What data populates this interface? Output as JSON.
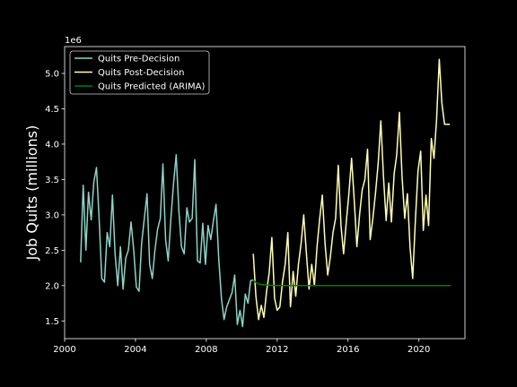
{
  "chart_data": {
    "type": "line",
    "title": "",
    "xlabel": "",
    "ylabel": "Job Quits (millions)",
    "y_offset_text": "1e6",
    "xlim": [
      2000,
      2022.6
    ],
    "ylim": [
      1.25,
      5.38
    ],
    "x_ticks": [
      2000,
      2004,
      2008,
      2012,
      2016,
      2020
    ],
    "y_ticks": [
      1.5,
      2.0,
      2.5,
      3.0,
      3.5,
      4.0,
      4.5,
      5.0
    ],
    "x_tick_labels": [
      "2000",
      "2004",
      "2008",
      "2012",
      "2016",
      "2020"
    ],
    "y_tick_labels": [
      "1.5",
      "2.0",
      "2.5",
      "3.0",
      "3.5",
      "4.0",
      "4.5",
      "5.0"
    ],
    "grid": false,
    "legend_position": "upper-left",
    "series": [
      {
        "name": "Quits Pre-Decision",
        "color": "#8dd3c7",
        "x": [
          2000.9,
          2001.05,
          2001.2,
          2001.35,
          2001.5,
          2001.65,
          2001.8,
          2001.95,
          2002.1,
          2002.25,
          2002.4,
          2002.55,
          2002.7,
          2002.85,
          2003.0,
          2003.15,
          2003.3,
          2003.45,
          2003.6,
          2003.75,
          2003.9,
          2004.05,
          2004.2,
          2004.35,
          2004.5,
          2004.65,
          2004.8,
          2004.95,
          2005.1,
          2005.25,
          2005.4,
          2005.55,
          2005.7,
          2005.85,
          2006.0,
          2006.15,
          2006.3,
          2006.45,
          2006.6,
          2006.75,
          2006.9,
          2007.05,
          2007.2,
          2007.35,
          2007.5,
          2007.65,
          2007.8,
          2007.95,
          2008.1,
          2008.25,
          2008.4,
          2008.55,
          2008.7,
          2008.85,
          2009.0,
          2009.15,
          2009.3,
          2009.45,
          2009.6,
          2009.75,
          2009.9,
          2010.05,
          2010.2,
          2010.35,
          2010.5,
          2010.65
        ],
        "y": [
          2.33,
          3.42,
          2.5,
          3.32,
          2.93,
          3.47,
          3.67,
          2.93,
          2.1,
          2.05,
          2.75,
          2.55,
          3.28,
          2.45,
          2.0,
          2.55,
          1.95,
          2.39,
          2.5,
          2.9,
          2.5,
          1.98,
          1.92,
          2.6,
          2.95,
          3.3,
          2.3,
          2.1,
          2.5,
          2.8,
          2.95,
          3.72,
          2.65,
          2.35,
          2.95,
          3.45,
          3.85,
          3.05,
          2.55,
          2.45,
          3.1,
          2.9,
          2.95,
          3.78,
          2.35,
          2.32,
          2.88,
          2.3,
          2.85,
          2.65,
          2.92,
          3.15,
          2.38,
          1.82,
          1.52,
          1.7,
          1.8,
          1.9,
          2.15,
          1.45,
          1.65,
          1.42,
          1.88,
          1.75,
          2.07,
          2.08
        ]
      },
      {
        "name": "Quits Post-Decision",
        "color": "#ffffb3",
        "x": [
          2010.65,
          2010.8,
          2010.95,
          2011.1,
          2011.25,
          2011.4,
          2011.55,
          2011.7,
          2011.85,
          2012.0,
          2012.15,
          2012.3,
          2012.45,
          2012.6,
          2012.75,
          2012.9,
          2013.05,
          2013.2,
          2013.35,
          2013.5,
          2013.65,
          2013.8,
          2013.95,
          2014.1,
          2014.25,
          2014.4,
          2014.55,
          2014.7,
          2014.85,
          2015.0,
          2015.15,
          2015.3,
          2015.45,
          2015.6,
          2015.75,
          2015.9,
          2016.05,
          2016.2,
          2016.35,
          2016.5,
          2016.65,
          2016.8,
          2016.95,
          2017.1,
          2017.25,
          2017.4,
          2017.55,
          2017.7,
          2017.85,
          2018.0,
          2018.15,
          2018.3,
          2018.45,
          2018.6,
          2018.75,
          2018.9,
          2019.05,
          2019.2,
          2019.35,
          2019.5,
          2019.65,
          2019.8,
          2019.95,
          2020.1,
          2020.25,
          2020.4,
          2020.55,
          2020.7,
          2020.85,
          2021.0,
          2021.15,
          2021.3,
          2021.45,
          2021.6,
          2021.75
        ],
        "y": [
          2.45,
          1.85,
          1.52,
          1.72,
          1.55,
          1.92,
          2.18,
          2.68,
          1.82,
          1.65,
          1.7,
          2.05,
          2.3,
          2.75,
          1.7,
          2.2,
          1.85,
          2.3,
          2.6,
          3.0,
          2.45,
          1.95,
          2.3,
          2.0,
          2.55,
          2.95,
          3.28,
          2.6,
          2.15,
          2.4,
          2.75,
          2.95,
          3.7,
          2.85,
          2.45,
          2.9,
          3.3,
          3.8,
          3.2,
          2.55,
          3.0,
          3.35,
          3.5,
          3.93,
          2.65,
          2.95,
          3.3,
          3.72,
          4.33,
          3.55,
          2.92,
          3.45,
          2.9,
          3.58,
          3.85,
          4.45,
          3.55,
          2.95,
          3.3,
          2.55,
          2.1,
          2.9,
          3.62,
          3.9,
          2.78,
          3.28,
          2.85,
          4.08,
          3.8,
          4.35,
          5.2,
          4.58,
          4.28,
          4.28,
          4.28
        ]
      },
      {
        "name": "Quits Predicted (ARIMA)",
        "color": "#008000",
        "x": [
          2010.65,
          2010.8,
          2011.0,
          2011.3,
          2011.6,
          2012.0,
          2013.0,
          2015.0,
          2018.0,
          2021.8
        ],
        "y": [
          2.08,
          2.04,
          2.02,
          2.01,
          2.005,
          2.0,
          2.0,
          2.0,
          2.0,
          2.0
        ]
      }
    ]
  }
}
